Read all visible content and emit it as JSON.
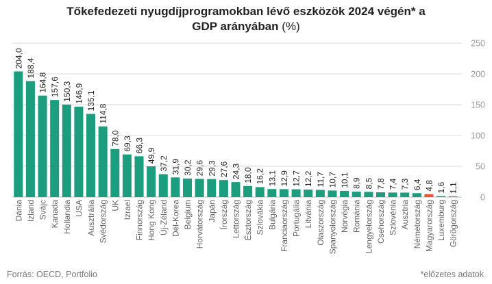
{
  "title": {
    "line1": "Tőkefedezeti nyugdíjprogramokban lévő eszközök 2024 végén* a",
    "line2": "GDP arányában",
    "unit": " (%)"
  },
  "footer": {
    "source": "Forrás: OECD, Portfolio",
    "note": "*előzetes adatok"
  },
  "colors": {
    "bar": "#1c9e7e",
    "highlight": "#e05a2c",
    "grid": "#d9d9d9",
    "tick": "#9a9a9a",
    "label": "#222222",
    "category": "#666666"
  },
  "chart_data": {
    "type": "bar",
    "categories": [
      "Dánia",
      "Izland",
      "Svájc",
      "Kanada",
      "Hollandia",
      "USA",
      "Ausztrália",
      "Svédország",
      "UK",
      "Izrael",
      "Finnország",
      "Hong Kong",
      "Új-Zéland",
      "Dél-Korea",
      "Belgium",
      "Horvátország",
      "Japán",
      "Írország",
      "Lettország",
      "Észtország",
      "Szlovákia",
      "Bulgária",
      "Franciaország",
      "Portugália",
      "Litvánia",
      "Olaszország",
      "Spanyolország",
      "Norvégia",
      "Románia",
      "Lengyelország",
      "Csehország",
      "Szlovénia",
      "Ausztria",
      "Németország",
      "Magyarország",
      "Luxemburg",
      "Görögország"
    ],
    "values": [
      204.0,
      188.4,
      164.8,
      157.6,
      150.3,
      146.9,
      135.1,
      114.8,
      78.0,
      69.3,
      66.3,
      49.9,
      37.2,
      31.9,
      30.2,
      29.6,
      29.3,
      27.6,
      24.3,
      18.0,
      16.2,
      13.1,
      12.9,
      12.7,
      12.2,
      11.7,
      10.7,
      10.1,
      8.9,
      8.5,
      7.8,
      7.4,
      7.3,
      6.4,
      4.8,
      1.6,
      1.1
    ],
    "value_labels": [
      "204,0",
      "188,4",
      "164,8",
      "157,6",
      "150,3",
      "146,9",
      "135,1",
      "114,8",
      "78,0",
      "69,3",
      "66,3",
      "49,9",
      "37,2",
      "31,9",
      "30,2",
      "29,6",
      "29,3",
      "27,6",
      "24,3",
      "18,0",
      "16,2",
      "13,1",
      "12,9",
      "12,7",
      "12,2",
      "11,7",
      "10,7",
      "10,1",
      "8,9",
      "8,5",
      "7,8",
      "7,4",
      "7,3",
      "6,4",
      "4,8",
      "1,6",
      "1,1"
    ],
    "highlight": "Magyarország",
    "y_ticks": [
      0,
      50,
      100,
      150,
      200,
      250
    ],
    "y_tick_labels": [
      "0",
      "50",
      "100",
      "150",
      "200",
      "250"
    ],
    "ylim": [
      0,
      250
    ],
    "xlabel": "",
    "ylabel": "",
    "grid": true,
    "y_axis_position": "right",
    "legend": "none"
  }
}
